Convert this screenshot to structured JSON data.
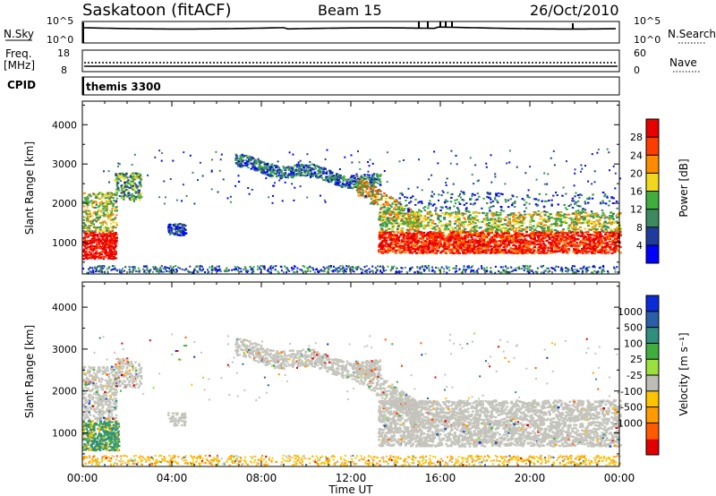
{
  "header": {
    "station": "Saskatoon (fitACF)",
    "beam": "Beam 15",
    "date": "26/Oct/2010"
  },
  "top_panels": {
    "nsky_label": "N.Sky",
    "nsky_ticks": [
      "10^5",
      "10^0"
    ],
    "nsearch_label": "N.Search",
    "nsearch_ticks": [
      "10^5",
      "10^0"
    ],
    "freq_label": "Freq.",
    "freq_unit": "[MHz]",
    "freq_ticks": [
      "18",
      "8"
    ],
    "nave_label": "Nave",
    "nave_ticks": [
      "60",
      "0"
    ],
    "cpid_label": "CPID",
    "cpid_value": "themis 3300"
  },
  "x_axis": {
    "title": "Time UT",
    "ticks": [
      "00:00",
      "04:00",
      "08:00",
      "12:00",
      "16:00",
      "20:00",
      "00:00"
    ]
  },
  "colors": {
    "power": [
      "#0000ff",
      "#1f3c9c",
      "#3d8a5e",
      "#3fae3f",
      "#f2d81c",
      "#ff8c00",
      "#ff3c00",
      "#e80000"
    ],
    "velocity": [
      "#e10000",
      "#ff5a00",
      "#ff9a00",
      "#ffc400",
      "#bdbdb6",
      "#9be03c",
      "#3fae3f",
      "#2f8f7d",
      "#2a5fa8",
      "#0a2bd5"
    ],
    "ground_scatter": "#c4c4bc"
  },
  "chart_data": [
    {
      "type": "heatmap",
      "ylabel": "Slant Range [km]",
      "yticks": [
        "4000",
        "3000",
        "2000",
        "1000"
      ],
      "ylim": [
        200,
        4600
      ],
      "xlim_hours": [
        0,
        24
      ],
      "colorbar": {
        "label": "Power [dB]",
        "ticks": [
          "28",
          "24",
          "20",
          "16",
          "12",
          "8",
          "4"
        ],
        "range": [
          0,
          32
        ]
      },
      "features": [
        {
          "t": [
            0.0,
            1.4
          ],
          "range_km": [
            600,
            1300
          ],
          "value_db": 28
        },
        {
          "t": [
            0.0,
            1.6
          ],
          "range_km": [
            1300,
            2300
          ],
          "value_db": 16
        },
        {
          "t": [
            1.4,
            2.6
          ],
          "range_km": [
            2100,
            2800
          ],
          "value_db": 14
        },
        {
          "t": [
            3.8,
            4.6
          ],
          "range_km": [
            1200,
            1500
          ],
          "value_db": 10
        },
        {
          "t": [
            6.8,
            13.0
          ],
          "range_km": [
            2600,
            3300
          ],
          "value_db": 10
        },
        {
          "t": [
            13.0,
            24.0
          ],
          "range_km": [
            700,
            1300
          ],
          "value_db": 26
        },
        {
          "t": [
            13.0,
            24.0
          ],
          "range_km": [
            1300,
            1800
          ],
          "value_db": 16
        },
        {
          "t": [
            0.0,
            24.0
          ],
          "range_km": [
            250,
            400
          ],
          "value_db": 6
        }
      ]
    },
    {
      "type": "heatmap",
      "ylabel": "Slant Range [km]",
      "yticks": [
        "4000",
        "3000",
        "2000",
        "1000"
      ],
      "ylim": [
        200,
        4600
      ],
      "xlim_hours": [
        0,
        24
      ],
      "colorbar": {
        "label": "Velocity [m s⁻¹]",
        "ticks": [
          "1000",
          "500",
          "100",
          "25",
          "-25",
          "-100",
          "-500",
          "-1000"
        ]
      },
      "features": [
        {
          "t": [
            0.0,
            1.5
          ],
          "range_km": [
            1300,
            2600
          ],
          "value_ms": 0,
          "kind": "ground"
        },
        {
          "t": [
            0.0,
            1.6
          ],
          "range_km": [
            600,
            1300
          ],
          "value_ms": 200
        },
        {
          "t": [
            6.8,
            13.5
          ],
          "range_km": [
            2400,
            3300
          ],
          "value_ms": 0,
          "kind": "ground"
        },
        {
          "t": [
            13.0,
            24.0
          ],
          "range_km": [
            700,
            1800
          ],
          "value_ms": 0,
          "kind": "ground"
        },
        {
          "t": [
            0.0,
            24.0
          ],
          "range_km": [
            250,
            450
          ],
          "value_ms": -150
        }
      ]
    }
  ]
}
